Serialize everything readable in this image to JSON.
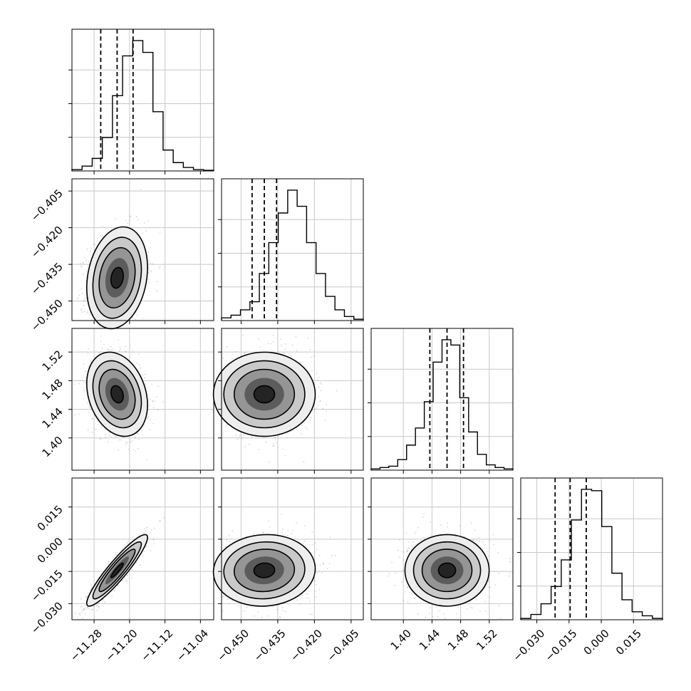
{
  "chart_data": {
    "type": "corner",
    "grid": true,
    "params": [
      {
        "range": [
          -11.33,
          -11.01
        ],
        "ticks": [
          -11.28,
          -11.2,
          -11.12,
          -11.04
        ],
        "tick_labels": [
          "−11.28",
          "−11.20",
          "−11.12",
          "−11.04"
        ],
        "quantiles": [
          -11.265,
          -11.228,
          -11.192
        ],
        "hist_counts": [
          2,
          7,
          18,
          48,
          108,
          165,
          187,
          170,
          85,
          30,
          12,
          5,
          2,
          1
        ],
        "hist_ticks": [
          0.25,
          0.5,
          0.75
        ]
      },
      {
        "range": [
          -0.458,
          -0.4
        ],
        "ticks": [
          -0.45,
          -0.435,
          -0.42,
          -0.405
        ],
        "tick_labels": [
          "−0.450",
          "−0.435",
          "−0.420",
          "−0.405"
        ],
        "quantiles": [
          -0.4455,
          -0.4405,
          -0.4355
        ],
        "hist_counts": [
          2,
          4,
          8,
          14,
          35,
          58,
          80,
          97,
          85,
          58,
          35,
          18,
          8,
          3,
          1
        ],
        "hist_ticks": [
          0.25,
          0.5,
          0.75
        ]
      },
      {
        "range": [
          1.355,
          1.553
        ],
        "ticks": [
          1.4,
          1.44,
          1.48,
          1.52
        ],
        "tick_labels": [
          "1.40",
          "1.44",
          "1.48",
          "1.52"
        ],
        "quantiles": [
          1.437,
          1.461,
          1.484
        ],
        "hist_counts": [
          1,
          2,
          3,
          8,
          19,
          32,
          52,
          82,
          99,
          95,
          55,
          29,
          12,
          4,
          2,
          1
        ],
        "hist_ticks": [
          0.25,
          0.5,
          0.75
        ]
      },
      {
        "range": [
          -0.0375,
          0.0285
        ],
        "ticks": [
          -0.03,
          -0.015,
          0.0,
          0.015
        ],
        "tick_labels": [
          "−0.030",
          "−0.015",
          "0.000",
          "0.015"
        ],
        "quantiles": [
          -0.0215,
          -0.0145,
          -0.007
        ],
        "hist_counts": [
          1,
          4,
          12,
          25,
          45,
          75,
          98,
          97,
          70,
          35,
          15,
          6,
          3,
          1
        ],
        "hist_ticks": [
          0.25,
          0.5,
          0.75
        ]
      }
    ],
    "pairs": [
      {
        "row": 1,
        "col": 0,
        "mean": [
          -11.228,
          -0.4405
        ],
        "sd": [
          0.028,
          0.0085
        ],
        "corr": 0.2
      },
      {
        "row": 2,
        "col": 0,
        "mean": [
          -11.228,
          1.461
        ],
        "sd": [
          0.028,
          0.024
        ],
        "corr": -0.25
      },
      {
        "row": 2,
        "col": 1,
        "mean": [
          -0.4405,
          1.461
        ],
        "sd": [
          0.0085,
          0.024
        ],
        "corr": 0.0
      },
      {
        "row": 3,
        "col": 0,
        "mean": [
          -11.228,
          -0.0145
        ],
        "sd": [
          0.028,
          0.0068
        ],
        "corr": 0.92
      },
      {
        "row": 3,
        "col": 1,
        "mean": [
          -0.4405,
          -0.0145
        ],
        "sd": [
          0.0085,
          0.0068
        ],
        "corr": 0.05
      },
      {
        "row": 3,
        "col": 2,
        "mean": [
          1.461,
          -0.0145
        ],
        "sd": [
          0.024,
          0.0068
        ],
        "corr": 0.0
      }
    ]
  }
}
